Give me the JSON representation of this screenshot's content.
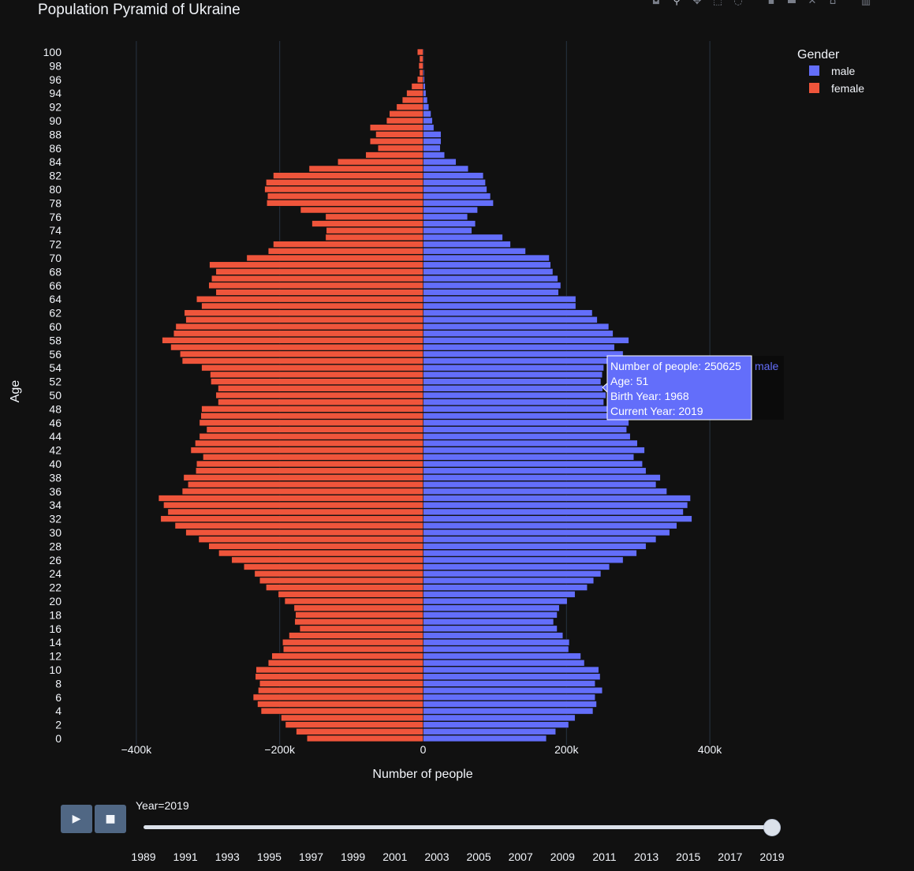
{
  "chart_data": {
    "type": "bar",
    "orientation": "horizontal",
    "title": "Population Pyramid of Ukraine",
    "xlabel": "Number of people",
    "ylabel": "Age",
    "xlim": [
      -500000,
      500000
    ],
    "ylim": [
      0,
      100
    ],
    "x_ticks": [
      {
        "value": -400000,
        "label": "−400k"
      },
      {
        "value": -200000,
        "label": "−200k"
      },
      {
        "value": 0,
        "label": "0"
      },
      {
        "value": 200000,
        "label": "200k"
      },
      {
        "value": 400000,
        "label": "400k"
      }
    ],
    "y_ticks": [
      0,
      2,
      4,
      6,
      8,
      10,
      12,
      14,
      16,
      18,
      20,
      22,
      24,
      26,
      28,
      30,
      32,
      34,
      36,
      38,
      40,
      42,
      44,
      46,
      48,
      50,
      52,
      54,
      56,
      58,
      60,
      62,
      64,
      66,
      68,
      70,
      72,
      74,
      76,
      78,
      80,
      82,
      84,
      86,
      88,
      90,
      92,
      94,
      96,
      98,
      100
    ],
    "grid": true,
    "legend": {
      "title": "Gender",
      "position": "top-right"
    },
    "ages": [
      0,
      1,
      2,
      3,
      4,
      5,
      6,
      7,
      8,
      9,
      10,
      11,
      12,
      13,
      14,
      15,
      16,
      17,
      18,
      19,
      20,
      21,
      22,
      23,
      24,
      25,
      26,
      27,
      28,
      29,
      30,
      31,
      32,
      33,
      34,
      35,
      36,
      37,
      38,
      39,
      40,
      41,
      42,
      43,
      44,
      45,
      46,
      47,
      48,
      49,
      50,
      51,
      52,
      53,
      54,
      55,
      56,
      57,
      58,
      59,
      60,
      61,
      62,
      63,
      64,
      65,
      66,
      67,
      68,
      69,
      70,
      71,
      72,
      73,
      74,
      75,
      76,
      77,
      78,
      79,
      80,
      81,
      82,
      83,
      84,
      85,
      86,
      87,
      88,
      89,
      90,
      91,
      92,
      93,
      94,
      95,
      96,
      97,
      98,
      99,
      100
    ],
    "series": [
      {
        "name": "male",
        "color": "#636efa",
        "values": [
          172000,
          185000,
          203000,
          212000,
          237000,
          242000,
          240000,
          250000,
          240000,
          247000,
          245000,
          225000,
          220000,
          203000,
          204000,
          195000,
          187000,
          182000,
          187000,
          190000,
          201000,
          212000,
          229000,
          238000,
          248000,
          260000,
          279000,
          298000,
          311000,
          325000,
          344000,
          354000,
          375000,
          363000,
          369000,
          373000,
          340000,
          325000,
          331000,
          311000,
          306000,
          294000,
          309000,
          299000,
          289000,
          284000,
          287000,
          282000,
          282000,
          252000,
          255000,
          250625,
          248000,
          250000,
          252000,
          280000,
          279000,
          267000,
          287000,
          265000,
          259000,
          243000,
          236000,
          213000,
          213000,
          189000,
          192000,
          188000,
          181000,
          178000,
          176000,
          143000,
          122000,
          111000,
          68000,
          73000,
          62000,
          76000,
          98000,
          94000,
          89000,
          87000,
          84000,
          63000,
          46000,
          30000,
          24000,
          25000,
          25000,
          15000,
          13000,
          11000,
          8000,
          6000,
          4000,
          3000,
          2000,
          1500,
          1000,
          1000,
          1000
        ]
      },
      {
        "name": "female",
        "color": "#ef553b",
        "values": [
          -162000,
          -177000,
          -192000,
          -198000,
          -226000,
          -231000,
          -237000,
          -230000,
          -228000,
          -234000,
          -233000,
          -216000,
          -211000,
          -195000,
          -196000,
          -187000,
          -172000,
          -179000,
          -178000,
          -180000,
          -193000,
          -202000,
          -219000,
          -228000,
          -235000,
          -250000,
          -267000,
          -285000,
          -299000,
          -313000,
          -331000,
          -346000,
          -366000,
          -356000,
          -362000,
          -369000,
          -336000,
          -328000,
          -334000,
          -317000,
          -316000,
          -307000,
          -324000,
          -318000,
          -312000,
          -302000,
          -312000,
          -310000,
          -309000,
          -286000,
          -289000,
          -286000,
          -296000,
          -297000,
          -309000,
          -336000,
          -339000,
          -352000,
          -364000,
          -348000,
          -345000,
          -331000,
          -333000,
          -309000,
          -316000,
          -289000,
          -299000,
          -295000,
          -289000,
          -298000,
          -246000,
          -216000,
          -209000,
          -136000,
          -135000,
          -155000,
          -136000,
          -171000,
          -218000,
          -217000,
          -221000,
          -219000,
          -209000,
          -159000,
          -119000,
          -80000,
          -63000,
          -74000,
          -66000,
          -74000,
          -51000,
          -47000,
          -37000,
          -29000,
          -23000,
          -16000,
          -8000,
          -5000,
          -6000,
          -5000,
          -8000
        ]
      }
    ]
  },
  "legend": {
    "title": "Gender",
    "items": [
      {
        "label": "male",
        "color": "#636efa"
      },
      {
        "label": "female",
        "color": "#ef553b"
      }
    ]
  },
  "hover": {
    "series": "male",
    "age": 51,
    "lines": [
      "Number of people: 250625",
      "Age: 51",
      "Birth Year: 1968",
      "Current Year: 2019"
    ],
    "series_label": "male"
  },
  "modebar": {
    "icons": [
      "camera-icon",
      "zoom-icon",
      "pan-icon",
      "box-select-icon",
      "lasso-icon",
      "zoom-in-icon",
      "zoom-out-icon",
      "autoscale-icon",
      "reset-axes-icon",
      "plotly-logo-icon"
    ]
  },
  "animation": {
    "play_label": "▶",
    "stop_label": "■",
    "current_label": "Year=2019",
    "steps": [
      "1989",
      "1991",
      "1993",
      "1995",
      "1997",
      "1999",
      "2001",
      "2003",
      "2005",
      "2007",
      "2009",
      "2011",
      "2013",
      "2015",
      "2017",
      "2019"
    ],
    "current_index": 15
  },
  "colors": {
    "background": "#111111",
    "grid": "#283442",
    "text": "#f2f5fa",
    "male": "#636efa",
    "female": "#ef553b",
    "button": "#506784"
  }
}
